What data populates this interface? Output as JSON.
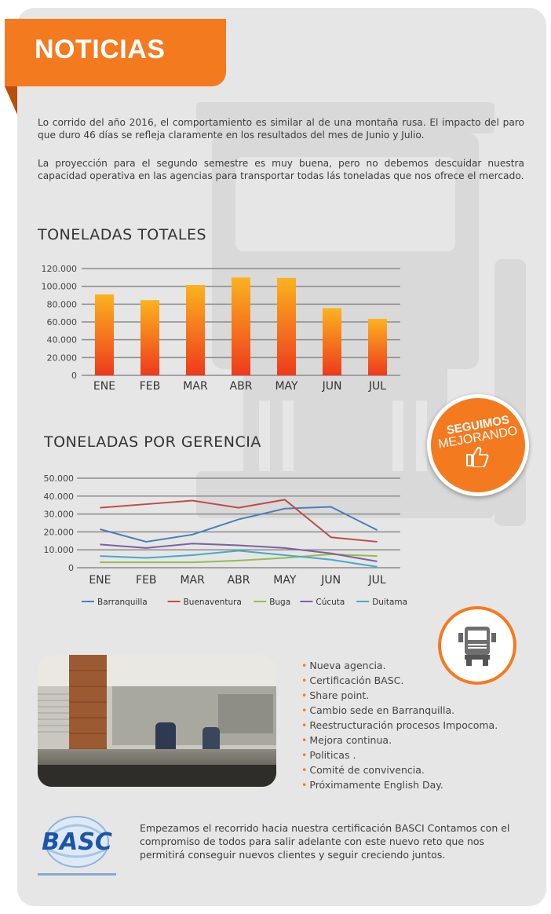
{
  "header": {
    "title": "NOTICIAS"
  },
  "intro": {
    "p1": "Lo corrido del año 2016, el comportamiento es similar al de una montaña rusa. El impacto del paro que duro 46 días se refleja claramente en los resultados del mes de Junio y Julio.",
    "p2": "La proyección para el segundo semestre es muy buena, pero no debemos descuidar nuestra capacidad operativa en las agencias para transportar todas lás toneladas que nos ofrece el mercado."
  },
  "chart_titles": {
    "totales": "TONELADAS TOTALES",
    "gerencia": "TONELADAS POR GERENCIA"
  },
  "chart_data": [
    {
      "type": "bar",
      "title": "TONELADAS TOTALES",
      "categories": [
        "ENE",
        "FEB",
        "MAR",
        "ABR",
        "MAY",
        "JUN",
        "JUL"
      ],
      "values": [
        91000,
        84500,
        101500,
        110000,
        109500,
        75500,
        63500
      ],
      "ylim": [
        0,
        120000
      ],
      "yticks": [
        0,
        20000,
        40000,
        60000,
        80000,
        100000,
        120000
      ],
      "ytick_labels": [
        "0",
        "20.000",
        "40.000",
        "60.000",
        "80.000",
        "100.000",
        "120.000"
      ],
      "grid": true,
      "colors": {
        "bar_top": "#fbb31f",
        "bar_bottom": "#ee3a1c"
      }
    },
    {
      "type": "line",
      "title": "TONELADAS POR GERENCIA",
      "categories": [
        "ENE",
        "FEB",
        "MAR",
        "ABR",
        "MAY",
        "JUN",
        "JUL"
      ],
      "ylim": [
        0,
        50000
      ],
      "yticks": [
        0,
        10000,
        20000,
        30000,
        40000,
        50000
      ],
      "ytick_labels": [
        "0",
        "10.000",
        "20.000",
        "30.000",
        "40.000",
        "50.000"
      ],
      "grid": true,
      "legend": "bottom",
      "series": [
        {
          "name": "Barranquilla",
          "color": "#4a7ebb",
          "values": [
            21500,
            14500,
            18500,
            27000,
            33000,
            34000,
            21000
          ]
        },
        {
          "name": "Buenaventura",
          "color": "#be4b48",
          "values": [
            33500,
            35500,
            37500,
            33500,
            38000,
            17000,
            14500
          ]
        },
        {
          "name": "Buga",
          "color": "#98b954",
          "values": [
            3000,
            3000,
            3000,
            4000,
            5500,
            7500,
            6500
          ]
        },
        {
          "name": "Cúcuta",
          "color": "#7d60a0",
          "values": [
            13000,
            11000,
            13500,
            12500,
            11000,
            8000,
            3500
          ]
        },
        {
          "name": "Duitama",
          "color": "#46aac5",
          "values": [
            6500,
            5500,
            7000,
            9500,
            7000,
            4500,
            500
          ]
        }
      ]
    }
  ],
  "badge": {
    "line1": "SEGUIMOS",
    "line2": "MEJORANDO",
    "icon": "thumbs-up-icon"
  },
  "truck_badge": {
    "icon": "truck-icon"
  },
  "news_list": [
    "Nueva agencia.",
    "Certificación BASC.",
    "Share point.",
    "Cambio sede en Barranquilla.",
    "Reestructuración procesos Impocoma.",
    "Mejora continua.",
    "Politicas .",
    "Comité de convivencia.",
    "Próximamente English Day."
  ],
  "basc": {
    "logo_text": "BASC",
    "text": "Empezamos el recorrido hacia nuestra certificación BASCI Contamos con el compromiso de todos para salir adelante con este nuevo reto que nos permitirá conseguir nuevos clientes y seguir creciendo juntos."
  },
  "colors": {
    "accent": "#f47a20",
    "panel": "#e6e6e6"
  }
}
